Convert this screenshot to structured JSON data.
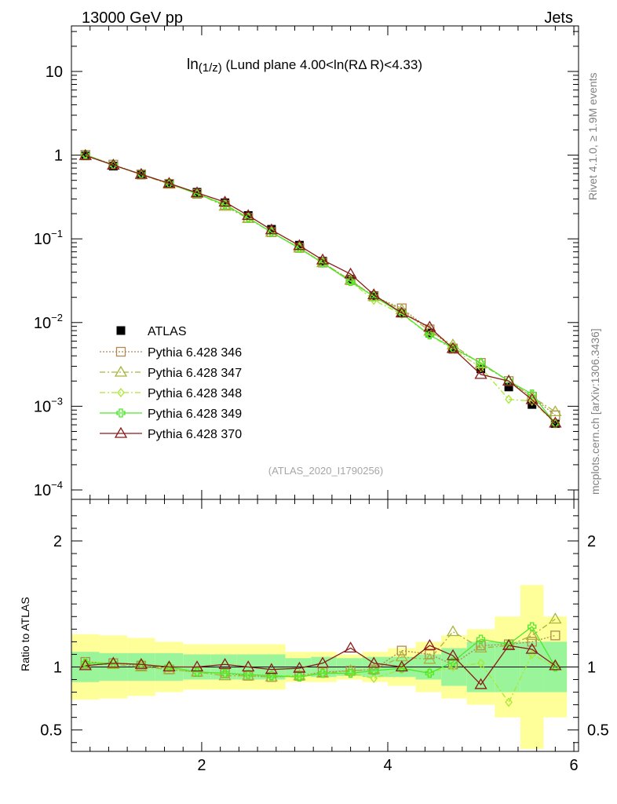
{
  "header": {
    "left": "13000 GeV pp",
    "right": "Jets"
  },
  "side_labels": {
    "top": "Rivet 4.1.0, ≥ 1.9M events",
    "bottom": "mcplots.cern.ch [arXiv:1306.3436]"
  },
  "watermark": "(ATLAS_2020_I1790256)",
  "ratio_ylabel": "Ratio to ATLAS",
  "colors": {
    "ATLAS": "#000000",
    "p346": "#b08850",
    "p347": "#a8b43a",
    "p348": "#a8e832",
    "p349": "#4ce82a",
    "p370": "#8b1a1a",
    "band_yellow": "#ffff9a",
    "band_green": "#9af59a"
  },
  "chart_data": {
    "type": "line",
    "title": "ln(1/z) (Lund plane 4.00<ln(RΔ R)<4.33)",
    "title_parts": {
      "main": "ln",
      "sub": "(1/z)",
      "rest": " (Lund plane 4.00<ln(RΔ R)<4.33)"
    },
    "xlabel": "",
    "ylabel": "",
    "xlim": [
      0.6,
      6.05
    ],
    "ylim": [
      0.0001,
      35
    ],
    "yscale": "log",
    "x_ticks": [
      "2",
      "4",
      "6"
    ],
    "x_tick_values": [
      2,
      4,
      6
    ],
    "y_tick_labels": [
      {
        "value": 10,
        "base": "10",
        "exp": ""
      },
      {
        "value": 1,
        "base": "1",
        "exp": ""
      },
      {
        "value": 0.1,
        "base": "10",
        "exp": "−1"
      },
      {
        "value": 0.01,
        "base": "10",
        "exp": "−2"
      },
      {
        "value": 0.001,
        "base": "10",
        "exp": "−3"
      },
      {
        "value": 0.0001,
        "base": "10",
        "exp": "−4"
      }
    ],
    "x": [
      0.75,
      1.05,
      1.35,
      1.65,
      1.95,
      2.25,
      2.5,
      2.75,
      3.05,
      3.3,
      3.6,
      3.85,
      4.15,
      4.45,
      4.7,
      5.0,
      5.3,
      5.55,
      5.8
    ],
    "series": [
      {
        "name": "ATLAS",
        "key": "ATLAS",
        "marker": "square-filled",
        "values": [
          0.98,
          0.74,
          0.58,
          0.46,
          0.36,
          0.27,
          0.19,
          0.13,
          0.084,
          0.054,
          0.033,
          0.021,
          0.013,
          0.0075,
          0.0048,
          0.0028,
          0.0017,
          0.00105,
          0.00062
        ],
        "errors": [
          0.01,
          0.008,
          0.006,
          0.005,
          0.004,
          0.003,
          0.002,
          0.0015,
          0.001,
          0.0006,
          0.0004,
          0.0003,
          0.0002,
          0.00015,
          0.0001,
          0.0001,
          8e-05,
          6e-05,
          5e-05
        ]
      },
      {
        "name": "Pythia 6.428 346",
        "key": "p346",
        "marker": "square-open",
        "dash": "2,2",
        "values": [
          1.01,
          0.77,
          0.59,
          0.455,
          0.345,
          0.255,
          0.178,
          0.12,
          0.078,
          0.052,
          0.032,
          0.0205,
          0.0148,
          0.0083,
          0.0049,
          0.0033,
          0.002,
          0.0013,
          0.00078
        ]
      },
      {
        "name": "Pythia 6.428 347",
        "key": "p347",
        "marker": "triangle-open",
        "dash": "7,3,2,3",
        "values": [
          0.99,
          0.76,
          0.585,
          0.45,
          0.35,
          0.245,
          0.175,
          0.12,
          0.078,
          0.052,
          0.032,
          0.0205,
          0.0142,
          0.0079,
          0.0054,
          0.0032,
          0.002,
          0.0013,
          0.00086
        ]
      },
      {
        "name": "Pythia 6.428 348",
        "key": "p348",
        "marker": "diamond-open",
        "dash": "7,3,2,3",
        "values": [
          1.02,
          0.76,
          0.59,
          0.455,
          0.345,
          0.26,
          0.178,
          0.12,
          0.078,
          0.051,
          0.031,
          0.0185,
          0.0126,
          0.0071,
          0.0048,
          0.0029,
          0.00121,
          0.00115,
          0.00062
        ]
      },
      {
        "name": "Pythia 6.428 349",
        "key": "p349",
        "marker": "cross-open",
        "dash": "",
        "values": [
          1.01,
          0.76,
          0.59,
          0.46,
          0.345,
          0.255,
          0.178,
          0.12,
          0.077,
          0.0515,
          0.031,
          0.0205,
          0.0129,
          0.0071,
          0.005,
          0.0033,
          0.002,
          0.0014,
          0.00062
        ]
      },
      {
        "name": "Pythia 6.428 370",
        "key": "p370",
        "marker": "triangle-open",
        "dash": "",
        "values": [
          0.99,
          0.76,
          0.59,
          0.46,
          0.355,
          0.275,
          0.19,
          0.128,
          0.083,
          0.056,
          0.038,
          0.0215,
          0.013,
          0.0088,
          0.0049,
          0.0024,
          0.002,
          0.0012,
          0.00063
        ]
      }
    ],
    "ratio": {
      "ylim": [
        0.33,
        2.33
      ],
      "y_ticks": [
        "0.5",
        "1",
        "2"
      ],
      "y_tick_values": [
        0.5,
        1,
        2
      ],
      "band_green": [
        0.12,
        0.11,
        0.11,
        0.11,
        0.1,
        0.1,
        0.1,
        0.1,
        0.07,
        0.08,
        0.07,
        0.08,
        0.08,
        0.1,
        0.15,
        0.2,
        0.2,
        0.2,
        0.2
      ],
      "band_yellow": [
        0.26,
        0.25,
        0.23,
        0.2,
        0.18,
        0.18,
        0.18,
        0.18,
        0.12,
        0.12,
        0.1,
        0.12,
        0.15,
        0.2,
        0.25,
        0.3,
        0.4,
        0.65,
        0.4
      ],
      "series": [
        {
          "key": "p346",
          "values": [
            1.04,
            1.03,
            1.01,
            0.98,
            0.96,
            0.95,
            0.93,
            0.92,
            0.93,
            0.96,
            0.97,
            0.98,
            1.13,
            1.1,
            1.02,
            1.17,
            1.18,
            1.2,
            1.25
          ]
        },
        {
          "key": "p347",
          "values": [
            1.02,
            1.02,
            1.0,
            0.98,
            0.96,
            0.93,
            0.93,
            0.92,
            0.93,
            0.95,
            0.97,
            0.98,
            1.08,
            1.06,
            1.28,
            1.15,
            1.17,
            1.25,
            1.38
          ]
        },
        {
          "key": "p348",
          "values": [
            1.04,
            1.03,
            1.02,
            0.99,
            0.96,
            0.95,
            0.94,
            0.93,
            0.93,
            0.95,
            0.95,
            0.91,
            0.98,
            0.96,
            1.0,
            1.03,
            0.72,
            1.1,
            1.0
          ]
        },
        {
          "key": "p349",
          "values": [
            1.03,
            1.03,
            1.02,
            1.0,
            0.96,
            0.95,
            0.94,
            0.93,
            0.92,
            0.95,
            0.95,
            0.97,
            0.99,
            0.95,
            1.04,
            1.22,
            1.18,
            1.32,
            1.0
          ]
        },
        {
          "key": "p370",
          "values": [
            1.01,
            1.03,
            1.02,
            1.0,
            1.0,
            1.02,
            1.0,
            0.98,
            0.99,
            1.03,
            1.15,
            1.03,
            1.0,
            1.17,
            1.09,
            0.86,
            1.17,
            1.14,
            1.01
          ]
        }
      ]
    }
  }
}
